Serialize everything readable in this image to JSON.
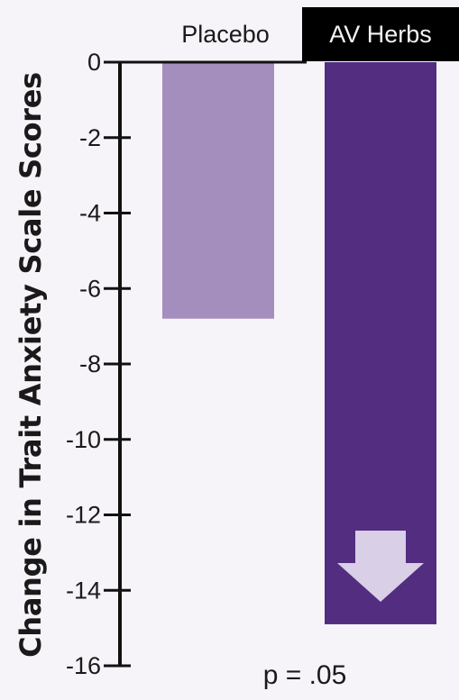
{
  "chart_data": {
    "type": "bar",
    "categories": [
      "Placebo",
      "AV Herbs"
    ],
    "values": [
      -6.8,
      -14.9
    ],
    "colors": [
      "#a38ebd",
      "#522d80"
    ],
    "ylabel": "Change in Trait Anxiety Scale Scores",
    "ylim": [
      -16,
      0
    ],
    "yticks": [
      0,
      -2,
      -4,
      -6,
      -8,
      -10,
      -12,
      -14,
      -16
    ],
    "annotation": "p = .05",
    "arrow_color": "#d9cfe6",
    "grid": false
  }
}
